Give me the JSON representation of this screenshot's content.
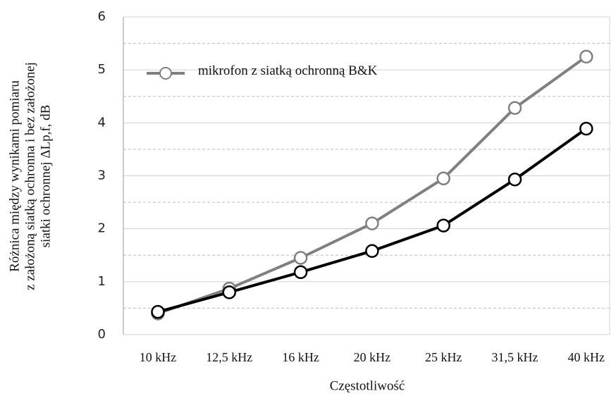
{
  "chart_data": {
    "type": "line",
    "categories": [
      "10 kHz",
      "12,5 kHz",
      "16 kHz",
      "20 kHz",
      "25 kHz",
      "31,5 kHz",
      "40 kHz"
    ],
    "series": [
      {
        "name": "mikrofon z siatką ochronną B&K",
        "color": "#808080",
        "values": [
          0.4,
          0.87,
          1.45,
          2.1,
          2.95,
          4.28,
          5.25
        ]
      },
      {
        "color": "#000000",
        "values": [
          0.43,
          0.8,
          1.18,
          1.58,
          2.06,
          2.93,
          3.89
        ]
      }
    ],
    "ylim": [
      0,
      6
    ],
    "yticks": [
      0,
      1,
      2,
      3,
      4,
      5,
      6
    ],
    "minor_yticks": [
      0.5,
      1.5,
      2.5,
      3.5,
      4.5,
      5.5
    ],
    "grid": true,
    "xlabel": "Częstotliwość",
    "ylabel": [
      "Różnica między wynikami pomiaru",
      "z założoną siatką ochronna i bez założonej",
      "siatki ochronnej ΔLp,f, dB"
    ],
    "legend": "upper left"
  }
}
